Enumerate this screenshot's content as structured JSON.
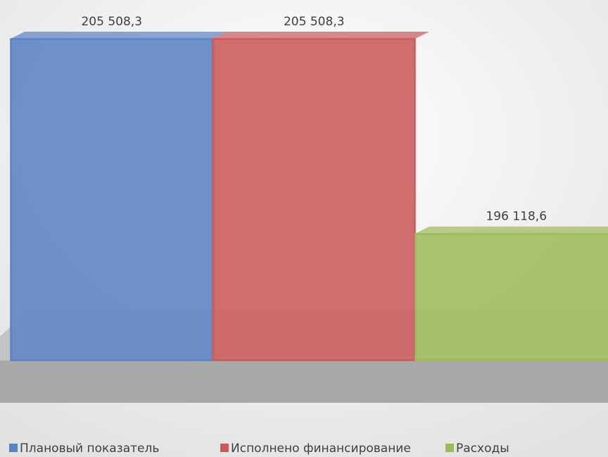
{
  "chart_data": {
    "type": "bar",
    "categories": [
      null
    ],
    "series": [
      {
        "name": "Плановый показатель",
        "color": "#5b82c2",
        "values": [
          205508.3
        ],
        "value_labels": [
          "205 508,3"
        ]
      },
      {
        "name": "Исполнено финансирование",
        "color": "#c9595a",
        "values": [
          205508.3
        ],
        "value_labels": [
          "205 508,3"
        ]
      },
      {
        "name": "Расходы",
        "color": "#9bbb59",
        "values": [
          196118.6
        ],
        "value_labels": [
          "196 118,6"
        ]
      }
    ],
    "ylim": [
      190000,
      206000
    ],
    "legend": "bottom"
  }
}
